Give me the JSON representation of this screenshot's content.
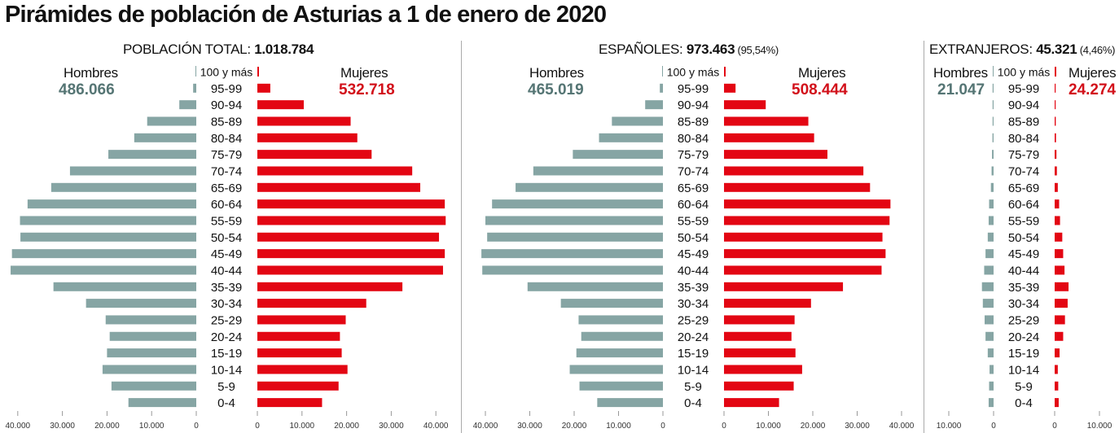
{
  "title": "Pirámides de población de Asturias a 1 de enero de 2020",
  "colors": {
    "men_bar": "#86a5a4",
    "men_text": "#557574",
    "women_bar": "#e30613",
    "women_text": "#d2101a"
  },
  "labels": {
    "men": "Hombres",
    "women": "Mujeres",
    "top_age": "100 y más"
  },
  "panels": [
    {
      "title_prefix": "POBLACIÓN TOTAL: ",
      "title_value": "1.018.784",
      "title_pct": "",
      "men_total": "486.066",
      "women_total": "532.718"
    },
    {
      "title_prefix": "ESPAÑOLES: ",
      "title_value": "973.463",
      "title_pct": " (95,54%)",
      "men_total": "465.019",
      "women_total": "508.444"
    },
    {
      "title_prefix": "EXTRANJEROS: ",
      "title_value": "45.321",
      "title_pct": " (4,46%)",
      "men_total": "21.047",
      "women_total": "24.274"
    }
  ],
  "chart_data": [
    {
      "type": "bar",
      "title": "POBLACIÓN TOTAL: 1.018.784",
      "categories": [
        "100 y más",
        "95-99",
        "90-94",
        "85-89",
        "80-84",
        "75-79",
        "70-74",
        "65-69",
        "60-64",
        "55-59",
        "50-54",
        "45-49",
        "40-44",
        "35-39",
        "30-34",
        "25-29",
        "20-24",
        "15-19",
        "10-14",
        "5-9",
        "0-4"
      ],
      "series": [
        {
          "name": "Hombres",
          "total": 486066,
          "values": [
            60,
            700,
            3800,
            11000,
            13900,
            19700,
            28300,
            32500,
            37800,
            39500,
            39400,
            41300,
            41600,
            32000,
            24700,
            20300,
            19400,
            20000,
            21000,
            19000,
            15200
          ]
        },
        {
          "name": "Mujeres",
          "total": 532718,
          "values": [
            250,
            2900,
            10400,
            20900,
            22400,
            25600,
            34700,
            36500,
            42000,
            42200,
            40700,
            42000,
            41600,
            32500,
            24400,
            19800,
            18500,
            18900,
            20200,
            18200,
            14500
          ]
        }
      ],
      "xlim": [
        0,
        40000
      ],
      "ticks_left": [
        "40.000",
        "30.000",
        "20.000",
        "10.000",
        "0"
      ],
      "ticks_right": [
        "0",
        "10.000",
        "20.000",
        "30.000",
        "40.000"
      ]
    },
    {
      "type": "bar",
      "title": "ESPAÑOLES: 973.463 (95,54%)",
      "categories": [
        "100 y más",
        "95-99",
        "90-94",
        "85-89",
        "80-84",
        "75-79",
        "70-74",
        "65-69",
        "60-64",
        "55-59",
        "50-54",
        "45-49",
        "40-44",
        "35-39",
        "30-34",
        "25-29",
        "20-24",
        "15-19",
        "10-14",
        "5-9",
        "0-4"
      ],
      "series": [
        {
          "name": "Hombres",
          "total": 465019,
          "values": [
            60,
            700,
            4000,
            11500,
            14400,
            20300,
            29200,
            33200,
            38500,
            40000,
            39600,
            40900,
            40700,
            30500,
            23000,
            19000,
            18400,
            19500,
            21000,
            18800,
            14800
          ]
        },
        {
          "name": "Mujeres",
          "total": 508444,
          "values": [
            250,
            2600,
            9400,
            19000,
            20300,
            23300,
            31400,
            32900,
            37500,
            37300,
            35700,
            36400,
            35500,
            26800,
            19600,
            15900,
            15200,
            16100,
            17600,
            15700,
            12400
          ]
        }
      ],
      "xlim": [
        0,
        40000
      ],
      "ticks_left": [
        "40.000",
        "30.000",
        "20.000",
        "10.000",
        "0"
      ],
      "ticks_right": [
        "0",
        "10.000",
        "20.000",
        "30.000",
        "40.000"
      ]
    },
    {
      "type": "bar",
      "title": "EXTRANJEROS: 45.321 (4,46%)",
      "categories": [
        "100 y más",
        "95-99",
        "90-94",
        "85-89",
        "80-84",
        "75-79",
        "70-74",
        "65-69",
        "60-64",
        "55-59",
        "50-54",
        "45-49",
        "40-44",
        "35-39",
        "30-34",
        "25-29",
        "20-24",
        "15-19",
        "10-14",
        "5-9",
        "0-4"
      ],
      "series": [
        {
          "name": "Hombres",
          "total": 21047,
          "values": [
            0,
            20,
            60,
            150,
            250,
            350,
            450,
            600,
            1000,
            1100,
            1300,
            1800,
            2100,
            2600,
            2400,
            2000,
            1800,
            1300,
            900,
            1000,
            1100
          ]
        },
        {
          "name": "Mujeres",
          "total": 24274,
          "values": [
            0,
            40,
            100,
            250,
            300,
            400,
            500,
            700,
            1000,
            1200,
            1700,
            1900,
            2200,
            3100,
            2900,
            2300,
            1900,
            1100,
            700,
            800,
            900
          ]
        }
      ],
      "xlim": [
        0,
        10000
      ],
      "ticks_left": [
        "10.000",
        "0"
      ],
      "ticks_right": [
        "0",
        "10.000"
      ]
    }
  ]
}
